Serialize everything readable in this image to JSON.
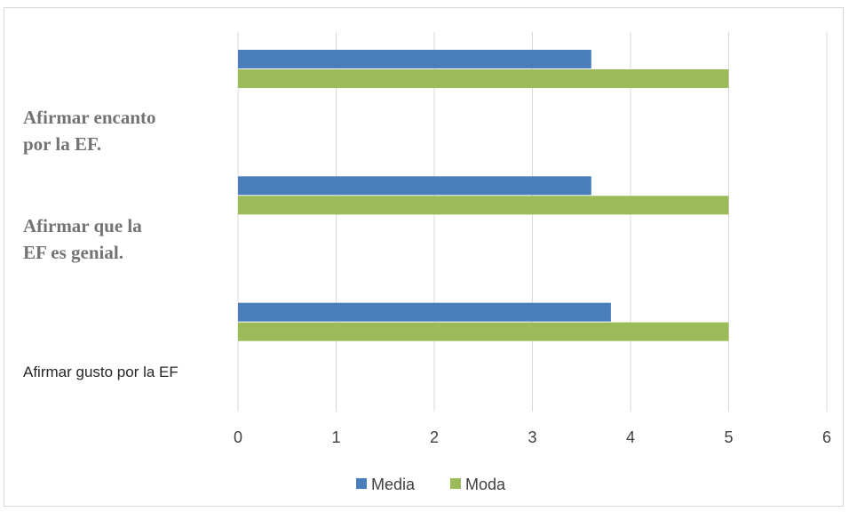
{
  "chart_data": {
    "type": "bar",
    "orientation": "horizontal",
    "categories": [
      "Afirmar gusto por la EF",
      "Afirmar que la EF es genial.",
      "Afirmar encanto por la EF."
    ],
    "series": [
      {
        "name": "Media",
        "color": "#4a7ebb",
        "values": [
          3.8,
          3.6,
          3.6
        ]
      },
      {
        "name": "Moda",
        "color": "#9bbb59",
        "values": [
          5,
          5,
          5
        ]
      }
    ],
    "xlim": [
      0,
      6
    ],
    "xticks": [
      "0",
      "1",
      "2",
      "3",
      "4",
      "5",
      "6"
    ],
    "grid": true,
    "legend": "bottom"
  }
}
